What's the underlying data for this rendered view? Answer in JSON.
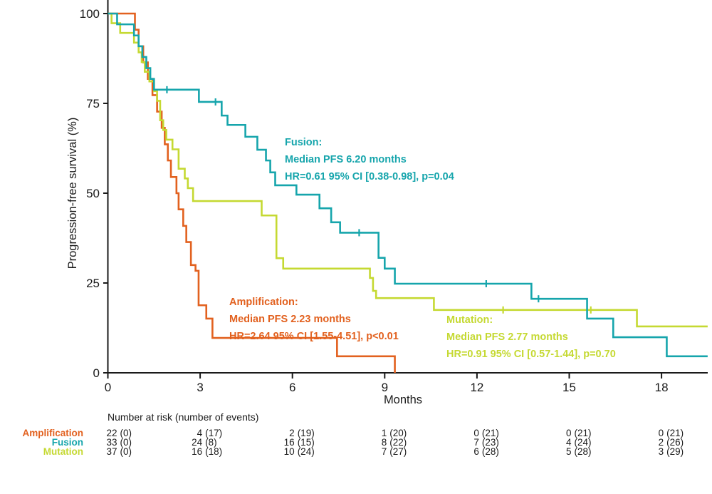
{
  "chart_data": {
    "type": "line",
    "subtype": "kaplan-meier-step-survival",
    "title": "",
    "xlabel": "Months",
    "ylabel": "Progression-free survival (%)",
    "xlim": [
      0,
      19.5
    ],
    "ylim": [
      0,
      100
    ],
    "x_ticks": [
      0,
      3,
      6,
      9,
      12,
      15,
      18
    ],
    "y_ticks": [
      0,
      25,
      50,
      75,
      100
    ],
    "grid": false,
    "legend_position": "none",
    "axis_color": "#1a1a1a",
    "series": [
      {
        "name": "Amplification",
        "color": "#E2611F",
        "median_pfs_months": 2.23,
        "hr_text": "HR=2.64 95% CI [1.55-4.51], p<0.01",
        "end_x": 9.33,
        "steps": [
          [
            0,
            100
          ],
          [
            0.88,
            95.5
          ],
          [
            1.0,
            90.9
          ],
          [
            1.15,
            86.4
          ],
          [
            1.3,
            81.8
          ],
          [
            1.45,
            77.3
          ],
          [
            1.6,
            72.7
          ],
          [
            1.75,
            68.2
          ],
          [
            1.85,
            63.6
          ],
          [
            1.95,
            59.1
          ],
          [
            2.05,
            54.5
          ],
          [
            2.23,
            50
          ],
          [
            2.3,
            45.5
          ],
          [
            2.45,
            40.9
          ],
          [
            2.55,
            36.4
          ],
          [
            2.7,
            30
          ],
          [
            2.85,
            28.4
          ],
          [
            2.95,
            18.8
          ],
          [
            3.2,
            15.1
          ],
          [
            3.4,
            9.7
          ],
          [
            7.45,
            4.6
          ],
          [
            9.33,
            0
          ]
        ],
        "censors": []
      },
      {
        "name": "Mutation",
        "color": "#C5D932",
        "median_pfs_months": 2.77,
        "hr_text": "HR=0.91 95% CI [0.57-1.44], p=0.70",
        "end_x": 19.5,
        "steps": [
          [
            0,
            100
          ],
          [
            0.12,
            97.3
          ],
          [
            0.4,
            94.6
          ],
          [
            0.85,
            91.9
          ],
          [
            1.0,
            89.2
          ],
          [
            1.1,
            86.5
          ],
          [
            1.2,
            83.8
          ],
          [
            1.35,
            81.1
          ],
          [
            1.5,
            78.4
          ],
          [
            1.6,
            75.7
          ],
          [
            1.7,
            70.3
          ],
          [
            1.8,
            67.6
          ],
          [
            1.9,
            64.9
          ],
          [
            2.1,
            62.2
          ],
          [
            2.3,
            56.8
          ],
          [
            2.5,
            54.1
          ],
          [
            2.6,
            51.4
          ],
          [
            2.77,
            47.8
          ],
          [
            5.0,
            43.8
          ],
          [
            5.48,
            31.9
          ],
          [
            5.7,
            29.0
          ],
          [
            8.52,
            26.4
          ],
          [
            8.62,
            22.8
          ],
          [
            8.72,
            20.8
          ],
          [
            10.6,
            17.5
          ],
          [
            17.2,
            12.9
          ]
        ],
        "censors": [
          [
            12.85,
            17.5
          ],
          [
            15.7,
            17.5
          ]
        ]
      },
      {
        "name": "Fusion",
        "color": "#16A5AC",
        "median_pfs_months": 6.2,
        "hr_text": "HR=0.61 95% CI [0.38-0.98], p=0.04",
        "end_x": 19.5,
        "steps": [
          [
            0,
            100
          ],
          [
            0.3,
            97
          ],
          [
            0.85,
            93.9
          ],
          [
            1.0,
            90.9
          ],
          [
            1.12,
            87.9
          ],
          [
            1.25,
            84.8
          ],
          [
            1.38,
            81.8
          ],
          [
            1.5,
            78.8
          ],
          [
            2.96,
            75.4
          ],
          [
            3.7,
            71.6
          ],
          [
            3.89,
            69.0
          ],
          [
            4.47,
            65.7
          ],
          [
            4.86,
            62.1
          ],
          [
            5.14,
            59.1
          ],
          [
            5.28,
            55.8
          ],
          [
            5.44,
            52.2
          ],
          [
            6.13,
            49.6
          ],
          [
            6.88,
            45.8
          ],
          [
            7.26,
            41.9
          ],
          [
            7.55,
            39.0
          ],
          [
            8.8,
            32.0
          ],
          [
            9.0,
            29.0
          ],
          [
            9.33,
            24.8
          ],
          [
            13.77,
            20.6
          ],
          [
            15.58,
            15.1
          ],
          [
            16.43,
            9.9
          ],
          [
            18.17,
            4.6
          ]
        ],
        "censors": [
          [
            1.92,
            78.8
          ],
          [
            3.5,
            75.4
          ],
          [
            8.17,
            39.0
          ],
          [
            12.3,
            24.8
          ],
          [
            14.0,
            20.6
          ]
        ]
      }
    ],
    "annotations": [
      {
        "series": "Fusion",
        "color": "#16A5AC",
        "x": 400,
        "y": 204,
        "lines": [
          "Fusion:",
          "Median PFS 6.20 months",
          "HR=0.61 95% CI [0.38-0.98], p=0.04"
        ]
      },
      {
        "series": "Amplification",
        "color": "#E2611F",
        "x": 322,
        "y": 428,
        "lines": [
          "Amplification:",
          "Median PFS 2.23 months",
          "HR=2.64 95% CI [1.55-4.51], p<0.01"
        ]
      },
      {
        "series": "Mutation",
        "color": "#C5D932",
        "x": 627,
        "y": 453,
        "lines": [
          "Mutation:",
          "Median PFS 2.77 months",
          "HR=0.91 95% CI [0.57-1.44], p=0.70"
        ]
      }
    ],
    "risk_table": {
      "title": "Number at risk (number of events)",
      "time_points": [
        0,
        3,
        6,
        9,
        12,
        15,
        18
      ],
      "rows": [
        {
          "label": "Amplification",
          "color": "#E2611F",
          "values": [
            "22 (0)",
            "4 (17)",
            "2 (19)",
            "1 (20)",
            "0 (21)",
            "0 (21)",
            "0 (21)"
          ]
        },
        {
          "label": "Fusion",
          "color": "#16A5AC",
          "values": [
            "33 (0)",
            "24 (8)",
            "16 (15)",
            "8 (22)",
            "7 (23)",
            "4 (24)",
            "2 (26)"
          ]
        },
        {
          "label": "Mutation",
          "color": "#C5D932",
          "values": [
            "37 (0)",
            "16 (18)",
            "10 (24)",
            "7 (27)",
            "6 (28)",
            "5 (28)",
            "3 (29)"
          ]
        }
      ]
    }
  }
}
